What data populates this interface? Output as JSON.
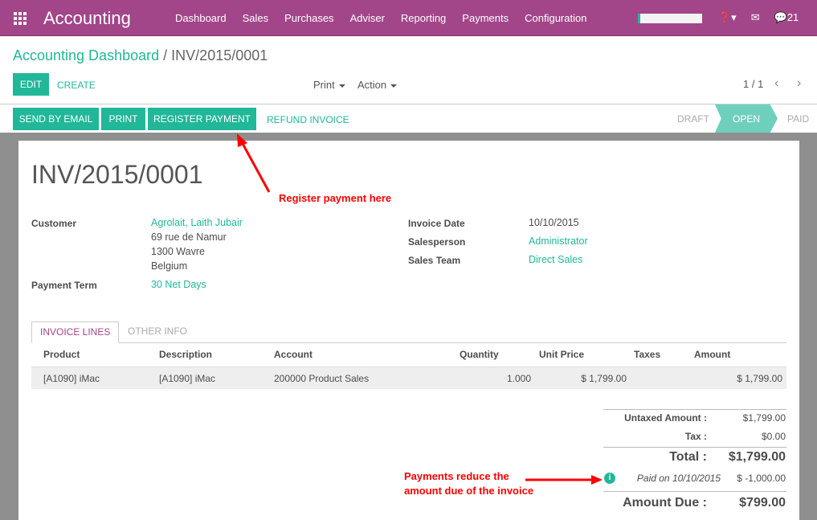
{
  "app": {
    "name": "Accounting",
    "menu": [
      "Dashboard",
      "Sales",
      "Purchases",
      "Adviser",
      "Reporting",
      "Payments",
      "Configuration"
    ],
    "messages_count": "21"
  },
  "breadcrumb": {
    "parent": "Accounting Dashboard",
    "separator": "/",
    "current": "INV/2015/0001"
  },
  "toolbar": {
    "edit": "EDIT",
    "create": "CREATE",
    "print": "Print",
    "action": "Action",
    "pager": "1 / 1"
  },
  "actions": {
    "send_email": "SEND BY EMAIL",
    "print": "PRINT",
    "register_payment": "REGISTER PAYMENT",
    "refund": "REFUND INVOICE"
  },
  "statusbar": {
    "steps": [
      "DRAFT",
      "OPEN",
      "PAID"
    ],
    "active": "OPEN"
  },
  "invoice": {
    "number": "INV/2015/0001",
    "customer_label": "Customer",
    "customer": "Agrolait, Laith Jubair",
    "address": [
      "69 rue de Namur",
      "1300 Wavre",
      "Belgium"
    ],
    "payment_term_label": "Payment Term",
    "payment_term": "30 Net Days",
    "invoice_date_label": "Invoice Date",
    "invoice_date": "10/10/2015",
    "salesperson_label": "Salesperson",
    "salesperson": "Administrator",
    "sales_team_label": "Sales Team",
    "sales_team": "Direct Sales"
  },
  "tabs": [
    "INVOICE LINES",
    "OTHER INFO"
  ],
  "lines": {
    "headers": [
      "Product",
      "Description",
      "Account",
      "Quantity",
      "Unit Price",
      "Taxes",
      "Amount"
    ],
    "rows": [
      {
        "product": "[A1090] iMac",
        "description": "[A1090] iMac",
        "account": "200000 Product Sales",
        "quantity": "1.000",
        "unit_price": "$ 1,799.00",
        "taxes": "",
        "amount": "$ 1,799.00"
      }
    ]
  },
  "totals": {
    "untaxed_label": "Untaxed Amount :",
    "untaxed": "$1,799.00",
    "tax_label": "Tax :",
    "tax": "$0.00",
    "total_label": "Total :",
    "total": "$1,799.00",
    "payment_label": "Paid on 10/10/2015",
    "payment": "$ -1,000.00",
    "due_label": "Amount Due :",
    "due": "$799.00"
  },
  "annotations": {
    "register": "Register payment here",
    "payments": [
      "Payments reduce the",
      "amount due of the invoice"
    ]
  },
  "colors": {
    "brand": "#a24689",
    "accent": "#21b799",
    "annotation": "#ff0000"
  }
}
